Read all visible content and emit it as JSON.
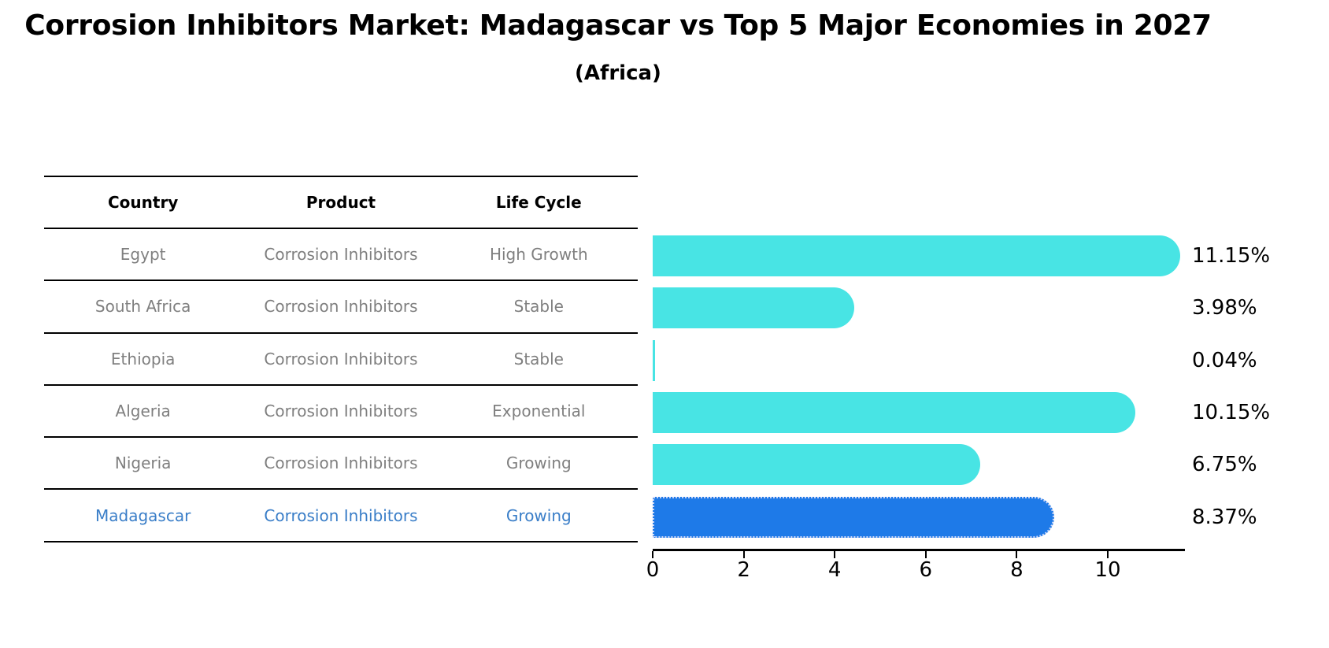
{
  "header": {
    "title": "Corrosion Inhibitors Market: Madagascar vs Top 5 Major Economies in 2027",
    "subtitle": "(Africa)"
  },
  "table": {
    "columns": [
      "Country",
      "Product",
      "Life Cycle"
    ],
    "rows": [
      {
        "country": "Egypt",
        "product": "Corrosion Inhibitors",
        "life_cycle": "High Growth",
        "highlight": false
      },
      {
        "country": "South Africa",
        "product": "Corrosion Inhibitors",
        "life_cycle": "Stable",
        "highlight": false
      },
      {
        "country": "Ethiopia",
        "product": "Corrosion Inhibitors",
        "life_cycle": "Stable",
        "highlight": false
      },
      {
        "country": "Algeria",
        "product": "Corrosion Inhibitors",
        "life_cycle": "Exponential",
        "highlight": false
      },
      {
        "country": "Nigeria",
        "product": "Corrosion Inhibitors",
        "life_cycle": "Growing",
        "highlight": false
      },
      {
        "country": "Madagascar",
        "product": "Corrosion Inhibitors",
        "life_cycle": "Growing",
        "highlight": true
      }
    ]
  },
  "chart_data": {
    "type": "bar",
    "orientation": "horizontal",
    "title": "Corrosion Inhibitors Market: Madagascar vs Top 5 Major Economies in 2027",
    "subtitle": "(Africa)",
    "categories": [
      "Egypt",
      "South Africa",
      "Ethiopia",
      "Algeria",
      "Nigeria",
      "Madagascar"
    ],
    "values": [
      11.15,
      3.98,
      0.04,
      10.15,
      6.75,
      8.37
    ],
    "value_labels": [
      "11.15%",
      "3.98%",
      "0.04%",
      "10.15%",
      "6.75%",
      "8.37%"
    ],
    "x_ticks": [
      0,
      2,
      4,
      6,
      8,
      10
    ],
    "xlim": [
      0,
      11.7
    ],
    "grid": false,
    "legend": "none",
    "bar_color": "#48e4e4",
    "highlight_color": "#1e7ae8",
    "highlight_text_color": "#3a7ec8",
    "highlight_index": 5
  }
}
